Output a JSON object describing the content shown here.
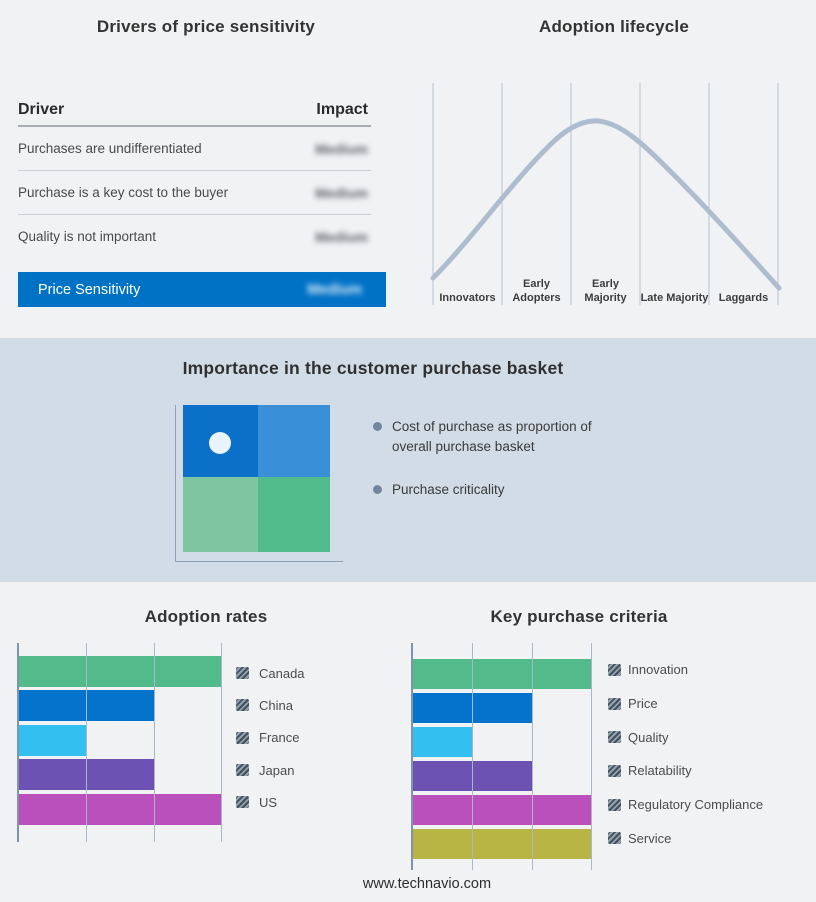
{
  "drivers_table": {
    "title": "Drivers of price sensitivity",
    "columns": [
      "Driver",
      "Impact"
    ],
    "impact_blurred": true,
    "rows": [
      {
        "driver": "Purchases are undifferentiated",
        "impact": "Medium"
      },
      {
        "driver": "Purchase is a key cost to the buyer",
        "impact": "Medium"
      },
      {
        "driver": "Quality is not important",
        "impact": "Medium"
      }
    ],
    "highlight_row": {
      "driver": "Price Sensitivity",
      "impact": "Medium"
    },
    "highlight_color": "#0072c6"
  },
  "lifecycle": {
    "title": "Adoption lifecycle",
    "stages": [
      "Innovators",
      "Early Adopters",
      "Early Majority",
      "Late Majority",
      "Laggards"
    ],
    "curve_color": "#aebccf"
  },
  "basket": {
    "title": "Importance in the customer purchase basket",
    "bullets": [
      "Cost of purchase as proportion of overall purchase basket",
      "Purchase criticality"
    ],
    "quadrant_colors": {
      "top_left": "#0b70c7",
      "top_right": "#3990d8",
      "bottom_left": "#7ec5a1",
      "bottom_right": "#53bc8c"
    },
    "dot_quadrant": "top_left",
    "background": "#d2dce7"
  },
  "chart_data": [
    {
      "type": "bar",
      "orientation": "horizontal",
      "title": "Adoption rates",
      "categories": [
        "Canada",
        "China",
        "France",
        "Japan",
        "US"
      ],
      "values": [
        3,
        2,
        1,
        2,
        3
      ],
      "colors": [
        "#52ba8b",
        "#0473cb",
        "#33bff0",
        "#6b52b3",
        "#ba50bc"
      ],
      "xlim": [
        0,
        3
      ],
      "grid": true,
      "legend_position": "right"
    },
    {
      "type": "bar",
      "orientation": "horizontal",
      "title": "Key purchase criteria",
      "categories": [
        "Innovation",
        "Price",
        "Quality",
        "Relatability",
        "Regulatory Compliance",
        "Service"
      ],
      "values": [
        3,
        2,
        1,
        2,
        3,
        3
      ],
      "colors": [
        "#52ba8b",
        "#0473cb",
        "#33bff0",
        "#6b52b3",
        "#ba50bc",
        "#b8b545"
      ],
      "xlim": [
        0,
        3
      ],
      "grid": true,
      "legend_position": "right"
    },
    {
      "type": "line",
      "title": "Adoption lifecycle",
      "x": [
        "Innovators",
        "Early Adopters",
        "Early Majority",
        "Late Majority",
        "Laggards"
      ],
      "relative_height": [
        0.15,
        0.6,
        0.98,
        0.6,
        0.15
      ],
      "shape": "bell curve peaking at Early Majority",
      "grid": "vertical stage separators"
    }
  ],
  "footer": {
    "website": "www.technavio.com"
  }
}
